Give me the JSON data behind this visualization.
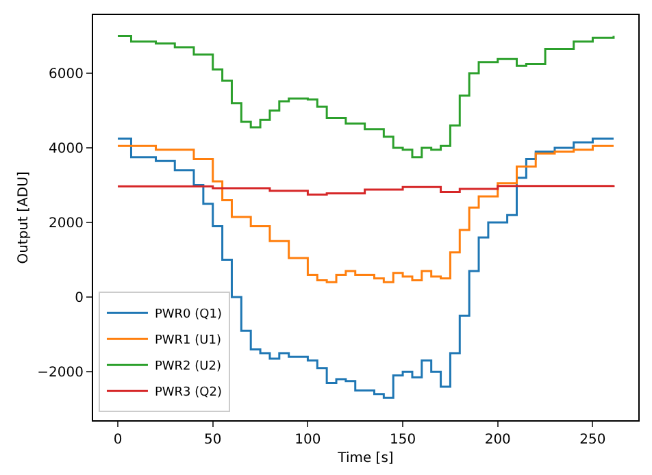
{
  "chart_data": {
    "type": "step",
    "xlabel": "Time [s]",
    "ylabel": "Output [ADU]",
    "xlim": [
      -13,
      274
    ],
    "ylim": [
      -3300,
      7560
    ],
    "xticks": [
      0,
      50,
      100,
      150,
      200,
      250
    ],
    "yticks": [
      -2000,
      0,
      2000,
      4000,
      6000
    ],
    "legend": "bottom left",
    "marker": "none",
    "line_style": "solid",
    "series": [
      {
        "name": "PWR0 (Q1)",
        "color": "#1f77b4",
        "x": [
          0,
          7,
          20,
          30,
          40,
          45,
          50,
          55,
          60,
          65,
          70,
          75,
          80,
          85,
          90,
          100,
          105,
          110,
          115,
          120,
          125,
          135,
          140,
          145,
          150,
          155,
          160,
          165,
          170,
          175,
          180,
          185,
          190,
          195,
          205,
          210,
          215,
          220,
          230,
          240,
          250,
          261
        ],
        "values": [
          4250,
          3750,
          3650,
          3400,
          3000,
          2500,
          1900,
          1000,
          0,
          -900,
          -1400,
          -1500,
          -1650,
          -1500,
          -1600,
          -1700,
          -1900,
          -2300,
          -2200,
          -2250,
          -2500,
          -2600,
          -2700,
          -2100,
          -2000,
          -2150,
          -1700,
          -2000,
          -2400,
          -1500,
          -500,
          700,
          1600,
          2000,
          2200,
          3200,
          3700,
          3900,
          4000,
          4150,
          4250,
          4250
        ]
      },
      {
        "name": "PWR1 (U1)",
        "color": "#ff7f0e",
        "x": [
          0,
          20,
          40,
          50,
          55,
          60,
          70,
          80,
          90,
          100,
          105,
          110,
          115,
          120,
          125,
          130,
          135,
          140,
          145,
          150,
          155,
          160,
          165,
          170,
          175,
          180,
          185,
          190,
          200,
          210,
          220,
          230,
          240,
          250,
          261
        ],
        "values": [
          4050,
          3950,
          3700,
          3100,
          2600,
          2150,
          1900,
          1500,
          1050,
          600,
          450,
          400,
          600,
          700,
          600,
          600,
          500,
          400,
          650,
          550,
          450,
          700,
          550,
          500,
          1200,
          1800,
          2400,
          2700,
          3050,
          3500,
          3850,
          3900,
          3950,
          4050,
          4050
        ]
      },
      {
        "name": "PWR2 (U2)",
        "color": "#2ca02c",
        "x": [
          0,
          7,
          20,
          30,
          40,
          50,
          55,
          60,
          65,
          70,
          75,
          80,
          85,
          90,
          100,
          105,
          110,
          120,
          130,
          140,
          145,
          150,
          155,
          160,
          165,
          170,
          175,
          180,
          185,
          190,
          200,
          210,
          215,
          225,
          240,
          250,
          261
        ],
        "values": [
          7000,
          6850,
          6800,
          6700,
          6500,
          6100,
          5800,
          5200,
          4700,
          4550,
          4750,
          5000,
          5250,
          5320,
          5300,
          5100,
          4800,
          4650,
          4500,
          4300,
          4000,
          3950,
          3750,
          4000,
          3950,
          4050,
          4600,
          5400,
          6000,
          6300,
          6380,
          6200,
          6250,
          6650,
          6850,
          6950,
          7000
        ]
      },
      {
        "name": "PWR3 (Q2)",
        "color": "#d62728",
        "x": [
          0,
          50,
          80,
          100,
          110,
          130,
          150,
          170,
          180,
          200,
          261
        ],
        "values": [
          2970,
          2920,
          2850,
          2750,
          2780,
          2880,
          2950,
          2820,
          2900,
          2980,
          3000
        ]
      }
    ]
  }
}
